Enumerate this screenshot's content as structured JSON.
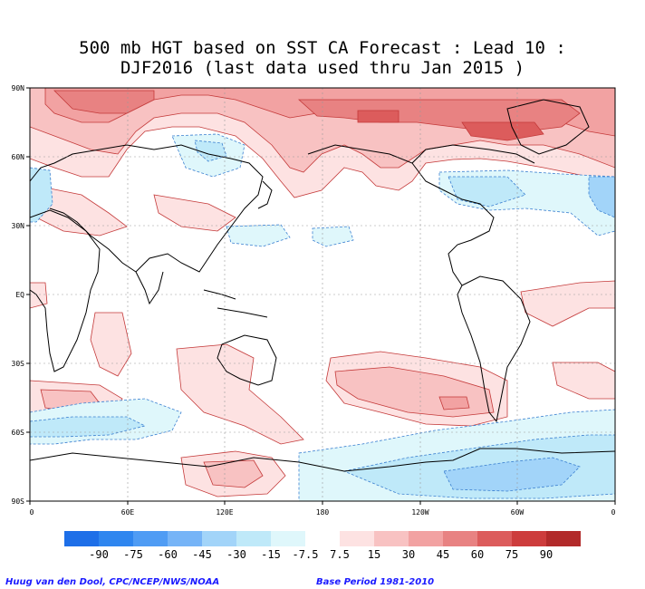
{
  "title_line1": "500 mb HGT based on SST CA Forecast : Lead 10 :",
  "title_line2": "DJF2016 (last data used thru Jan 2015 )",
  "lat_labels": [
    "90N",
    "60N",
    "30N",
    "EQ",
    "30S",
    "60S",
    "90S"
  ],
  "lon_labels": [
    "0",
    "60E",
    "120E",
    "180",
    "120W",
    "60W",
    "0"
  ],
  "colorbar": {
    "labels": [
      "-90",
      "-75",
      "-60",
      "-45",
      "-30",
      "-15",
      "-7.5",
      "7.5",
      "15",
      "30",
      "45",
      "60",
      "75",
      "90"
    ],
    "colors": [
      "#1e6fe8",
      "#2f86ef",
      "#4f9cf4",
      "#76b4f7",
      "#a2d4f9",
      "#bfe9f9",
      "#dff7fb",
      "#ffffff",
      "#fde2e2",
      "#f8c2c2",
      "#f2a2a2",
      "#e88282",
      "#dc5c5c",
      "#cd3c3c",
      "#b22a2a"
    ]
  },
  "footer_left": "Huug van den Dool, CPC/NCEP/NWS/NOAA",
  "footer_right": "Base Period 1981-2010"
}
